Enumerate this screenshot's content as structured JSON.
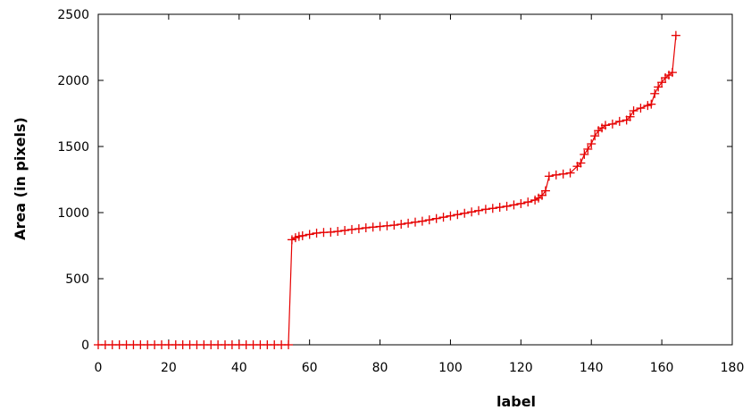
{
  "chart_data": {
    "type": "line",
    "xlabel": "label",
    "ylabel": "Area (in pixels)",
    "xlim": [
      0,
      180
    ],
    "ylim": [
      0,
      2500
    ],
    "xticks": [
      "0",
      "20",
      "40",
      "60",
      "80",
      "100",
      "120",
      "140",
      "160",
      "180"
    ],
    "yticks": [
      "0",
      "500",
      "1000",
      "1500",
      "2000",
      "2500"
    ],
    "grid": false,
    "marker": "plus",
    "series_color": "#e60000",
    "series": [
      {
        "x": [
          0,
          2,
          4,
          6,
          8,
          10,
          12,
          14,
          16,
          18,
          20,
          22,
          24,
          26,
          28,
          30,
          32,
          34,
          36,
          38,
          40,
          42,
          44,
          46,
          48,
          50,
          52,
          54,
          55,
          56,
          57,
          58,
          60,
          62,
          64,
          66,
          68,
          70,
          72,
          74,
          76,
          78,
          80,
          82,
          84,
          86,
          88,
          90,
          92,
          94,
          96,
          98,
          100,
          102,
          104,
          106,
          108,
          110,
          112,
          114,
          116,
          118,
          120,
          122,
          124,
          125,
          126,
          127,
          128,
          130,
          132,
          134,
          136,
          137,
          138,
          139,
          140,
          141,
          142,
          143,
          144,
          146,
          148,
          150,
          151,
          152,
          154,
          156,
          157,
          158,
          159,
          160,
          161,
          162,
          163,
          164
        ],
        "y": [
          0,
          0,
          0,
          0,
          0,
          0,
          0,
          0,
          0,
          0,
          0,
          0,
          0,
          0,
          0,
          0,
          0,
          0,
          0,
          0,
          0,
          0,
          0,
          0,
          0,
          0,
          0,
          0,
          795,
          810,
          820,
          825,
          835,
          845,
          850,
          852,
          858,
          865,
          872,
          878,
          885,
          890,
          895,
          900,
          905,
          912,
          920,
          928,
          935,
          945,
          955,
          965,
          975,
          985,
          995,
          1005,
          1015,
          1025,
          1032,
          1040,
          1048,
          1058,
          1068,
          1080,
          1095,
          1110,
          1130,
          1165,
          1275,
          1285,
          1292,
          1300,
          1350,
          1375,
          1440,
          1480,
          1520,
          1580,
          1620,
          1640,
          1660,
          1670,
          1690,
          1700,
          1725,
          1770,
          1790,
          1810,
          1820,
          1900,
          1950,
          1985,
          2020,
          2040,
          2060,
          2340
        ]
      }
    ]
  }
}
